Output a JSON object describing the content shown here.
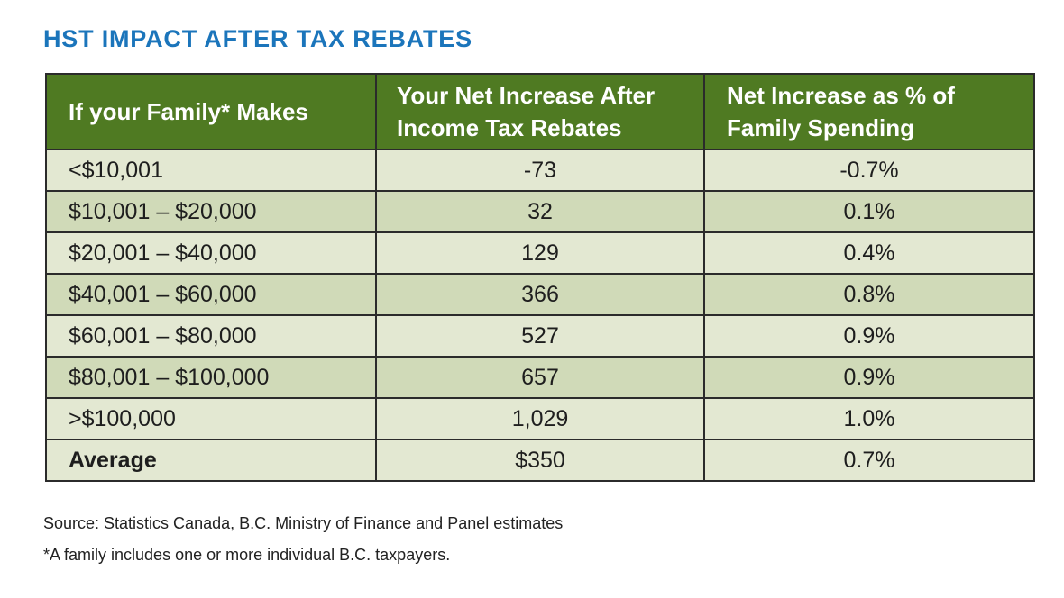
{
  "colors": {
    "title": "#1b75bb",
    "header_bg": "#4f7a22",
    "row_light": "#e3e8d2",
    "row_dark": "#d0dab8"
  },
  "chart_data": {
    "type": "table",
    "title": "HST IMPACT AFTER TAX REBATES",
    "columns": [
      "If your Family* Makes",
      "Your Net Increase After Income Tax Rebates",
      "Net Increase as % of Family Spending"
    ],
    "column_lines": [
      [
        "If your Family* Makes"
      ],
      [
        "Your Net Increase After",
        "Income Tax Rebates"
      ],
      [
        "Net Increase as % of",
        "Family Spending"
      ]
    ],
    "rows": [
      {
        "range": "<$10,001",
        "net_increase": "-73",
        "pct_spending": "-0.7%"
      },
      {
        "range": "$10,001 – $20,000",
        "net_increase": "32",
        "pct_spending": "0.1%"
      },
      {
        "range": "$20,001 – $40,000",
        "net_increase": "129",
        "pct_spending": "0.4%"
      },
      {
        "range": "$40,001 – $60,000",
        "net_increase": "366",
        "pct_spending": "0.8%"
      },
      {
        "range": "$60,001 – $80,000",
        "net_increase": "527",
        "pct_spending": "0.9%"
      },
      {
        "range": "$80,001 – $100,000",
        "net_increase": "657",
        "pct_spending": "0.9%"
      },
      {
        "range": ">$100,000",
        "net_increase": "1,029",
        "pct_spending": "1.0%"
      }
    ],
    "summary_row": {
      "range": "Average",
      "net_increase": "$350",
      "pct_spending": "0.7%"
    },
    "source": "Source: Statistics Canada, B.C. Ministry of Finance and Panel estimates",
    "footnote": "*A family includes one or more individual B.C. taxpayers."
  }
}
